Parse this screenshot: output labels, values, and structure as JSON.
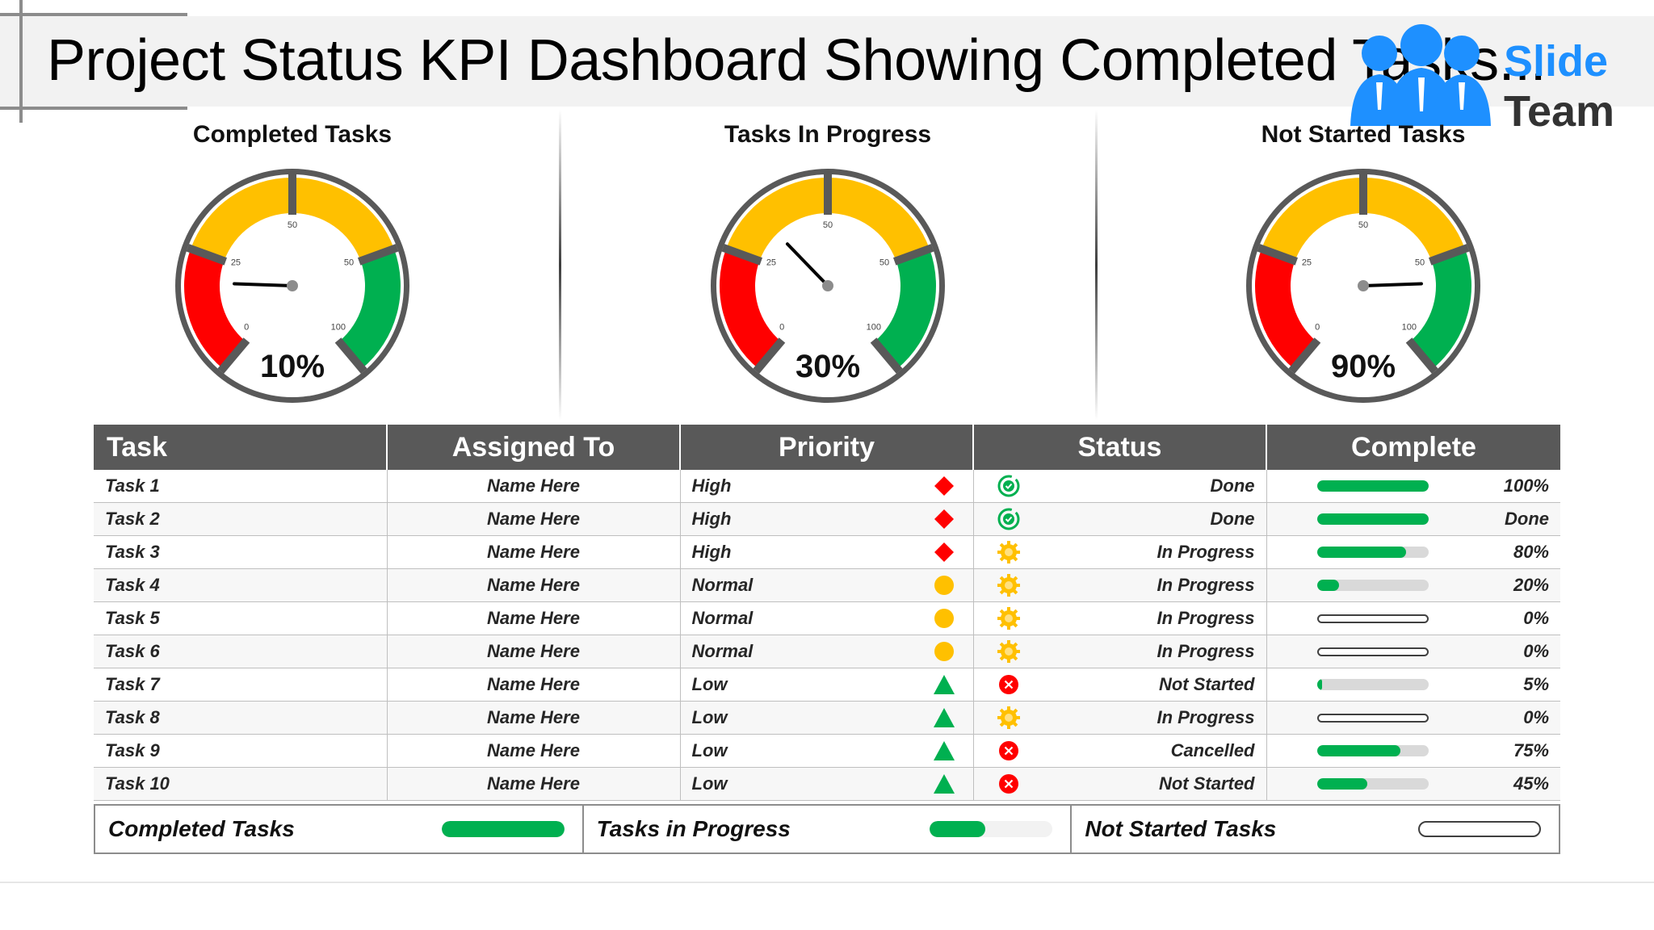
{
  "title": "Project Status KPI Dashboard Showing Completed Tasks...",
  "brand": {
    "line1": "Slide",
    "line2": "Team",
    "color_blue": "#1e90ff",
    "color_dark": "#333333"
  },
  "colors": {
    "red": "#ff0000",
    "yellow": "#ffc000",
    "green": "#00b050",
    "gauge_ring": "#595959",
    "header_bg": "#595959"
  },
  "gauges": [
    {
      "title": "Completed Tasks",
      "value_label": "10%",
      "needle_value": 10,
      "ticks": [
        "0",
        "25",
        "50",
        "50",
        "100"
      ]
    },
    {
      "title": "Tasks In Progress",
      "value_label": "30%",
      "needle_value": 30,
      "ticks": [
        "0",
        "25",
        "50",
        "50",
        "100"
      ]
    },
    {
      "title": "Not Started Tasks",
      "value_label": "90%",
      "needle_value": 90,
      "ticks": [
        "0",
        "25",
        "50",
        "50",
        "100"
      ]
    }
  ],
  "table": {
    "headers": [
      "Task",
      "Assigned To",
      "Priority",
      "Status",
      "Complete"
    ],
    "rows": [
      {
        "task": "Task 1",
        "assigned": "Name Here",
        "priority": "High",
        "priority_icon": "red-diamond-icon",
        "status": "Done",
        "status_icon": "check-circle-icon",
        "complete_label": "100%",
        "progress": 100
      },
      {
        "task": "Task 2",
        "assigned": "Name Here",
        "priority": "High",
        "priority_icon": "red-diamond-icon",
        "status": "Done",
        "status_icon": "check-circle-icon",
        "complete_label": "Done",
        "progress": 100
      },
      {
        "task": "Task 3",
        "assigned": "Name Here",
        "priority": "High",
        "priority_icon": "red-diamond-icon",
        "status": "In Progress",
        "status_icon": "gear-icon",
        "complete_label": "80%",
        "progress": 80
      },
      {
        "task": "Task 4",
        "assigned": "Name Here",
        "priority": "Normal",
        "priority_icon": "yellow-circle-icon",
        "status": "In Progress",
        "status_icon": "gear-icon",
        "complete_label": "20%",
        "progress": 20
      },
      {
        "task": "Task 5",
        "assigned": "Name Here",
        "priority": "Normal",
        "priority_icon": "yellow-circle-icon",
        "status": "In Progress",
        "status_icon": "gear-icon",
        "complete_label": "0%",
        "progress": 0
      },
      {
        "task": "Task 6",
        "assigned": "Name Here",
        "priority": "Normal",
        "priority_icon": "yellow-circle-icon",
        "status": "In Progress",
        "status_icon": "gear-icon",
        "complete_label": "0%",
        "progress": 0
      },
      {
        "task": "Task 7",
        "assigned": "Name Here",
        "priority": "Low",
        "priority_icon": "green-triangle-icon",
        "status": "Not Started",
        "status_icon": "x-circle-icon",
        "complete_label": "5%",
        "progress": 5
      },
      {
        "task": "Task 8",
        "assigned": "Name Here",
        "priority": "Low",
        "priority_icon": "green-triangle-icon",
        "status": "In Progress",
        "status_icon": "gear-icon",
        "complete_label": "0%",
        "progress": 0
      },
      {
        "task": "Task 9",
        "assigned": "Name Here",
        "priority": "Low",
        "priority_icon": "green-triangle-icon",
        "status": "Cancelled",
        "status_icon": "x-circle-icon",
        "complete_label": "75%",
        "progress": 75
      },
      {
        "task": "Task 10",
        "assigned": "Name Here",
        "priority": "Low",
        "priority_icon": "green-triangle-icon",
        "status": "Not Started",
        "status_icon": "x-circle-icon",
        "complete_label": "45%",
        "progress": 45
      }
    ]
  },
  "summary": [
    {
      "label": "Completed Tasks",
      "progress": 100
    },
    {
      "label": "Tasks in Progress",
      "progress": 45
    },
    {
      "label": "Not Started Tasks",
      "progress": 0
    }
  ]
}
